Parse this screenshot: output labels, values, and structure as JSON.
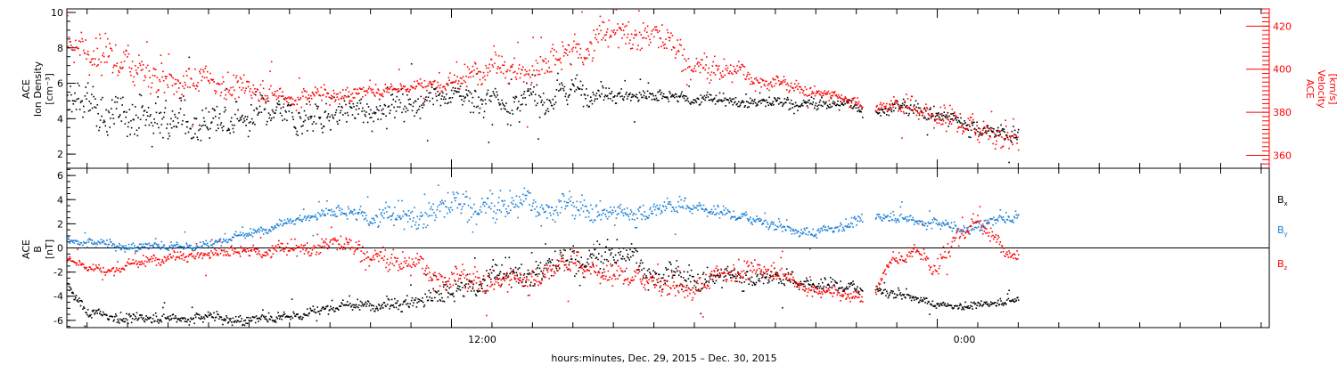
{
  "chart_data": {
    "xlabel": "hours:minutes, Dec. 29, 2015 – Dec. 30, 2015",
    "x_ticks": [
      {
        "label": "12:00",
        "hour": 12
      },
      {
        "label": "0:00",
        "hour": 24
      }
    ],
    "x_range_hours": [
      2.5,
      32.2
    ],
    "data_end_hour": 26.0,
    "panels": [
      {
        "type": "scatter",
        "left_axis": {
          "label_lines": [
            "ACE",
            "Ion Density",
            "[cm⁻³]"
          ],
          "ylim": [
            1.2,
            10.2
          ],
          "ticks": [
            2,
            4,
            6,
            8,
            10
          ]
        },
        "right_axis": {
          "label_lines": [
            "ACE",
            "Velocity",
            "[km/s]"
          ],
          "ylim": [
            354,
            428
          ],
          "ticks": [
            360,
            380,
            400,
            420
          ],
          "color": "#ff0000"
        },
        "series": [
          {
            "color": "#000000",
            "knots": [
              [
                2.5,
                4.8
              ],
              [
                3.5,
                4.3
              ],
              [
                5,
                4.1
              ],
              [
                7,
                4.0
              ],
              [
                9,
                4.2
              ],
              [
                10,
                4.6
              ],
              [
                11,
                5.0
              ],
              [
                12,
                5.3
              ],
              [
                13.5,
                5.0
              ],
              [
                14.5,
                5.5
              ],
              [
                15,
                5.8
              ],
              [
                16,
                5.5
              ],
              [
                17,
                5.2
              ],
              [
                18,
                5.1
              ],
              [
                19,
                5.0
              ],
              [
                20,
                4.9
              ],
              [
                21,
                4.9
              ],
              [
                22,
                4.7
              ],
              [
                22.4,
                4.4
              ],
              [
                22.8,
                4.7
              ],
              [
                23.5,
                4.6
              ],
              [
                24,
                4.3
              ],
              [
                24.5,
                4.0
              ],
              [
                25,
                3.6
              ],
              [
                25.5,
                3.2
              ],
              [
                26,
                2.9
              ]
            ],
            "spread": [
              [
                2.5,
                1.6
              ],
              [
                10,
                1.2
              ],
              [
                12,
                0.8
              ],
              [
                14,
                1.2
              ],
              [
                16,
                0.6
              ],
              [
                19,
                0.4
              ],
              [
                22,
                0.4
              ],
              [
                24,
                0.6
              ],
              [
                26,
                0.6
              ]
            ]
          },
          {
            "color": "#ff0000",
            "axis": "right",
            "knots": [
              [
                2.5,
                418
              ],
              [
                3,
                408
              ],
              [
                4,
                400
              ],
              [
                6,
                394
              ],
              [
                8,
                388
              ],
              [
                10,
                390
              ],
              [
                11,
                393
              ],
              [
                12,
                392
              ],
              [
                13,
                405
              ],
              [
                14,
                398
              ],
              [
                15,
                406
              ],
              [
                16,
                417
              ],
              [
                17,
                416
              ],
              [
                18,
                402
              ],
              [
                19,
                398
              ],
              [
                20,
                394
              ],
              [
                21,
                390
              ],
              [
                22,
                386
              ],
              [
                22.4,
                383
              ],
              [
                22.8,
                383
              ],
              [
                23.5,
                382
              ],
              [
                24,
                378
              ],
              [
                24.5,
                374
              ],
              [
                25,
                371
              ],
              [
                25.5,
                370
              ],
              [
                26,
                369
              ]
            ],
            "spread": [
              [
                2.5,
                14
              ],
              [
                8,
                6
              ],
              [
                11,
                3
              ],
              [
                13,
                8
              ],
              [
                15,
                12
              ],
              [
                18,
                8
              ],
              [
                20,
                4
              ],
              [
                22,
                3
              ],
              [
                24,
                8
              ],
              [
                26,
                8
              ]
            ]
          }
        ]
      },
      {
        "type": "scatter",
        "left_axis": {
          "label_lines": [
            "ACE",
            "B",
            "[nT]"
          ],
          "ylim": [
            -6.6,
            6.6
          ],
          "ticks": [
            -6,
            -4,
            -2,
            0,
            2,
            4,
            6
          ]
        },
        "zero_line": true,
        "legend": [
          {
            "label": "B",
            "sub": "x",
            "color": "#000000"
          },
          {
            "label": "B",
            "sub": "y",
            "color": "#1b7fd6"
          },
          {
            "label": "B",
            "sub": "z",
            "color": "#ff0000"
          }
        ],
        "series": [
          {
            "color": "#000000",
            "knots": [
              [
                2.5,
                -3.0
              ],
              [
                3,
                -5.4
              ],
              [
                4,
                -5.8
              ],
              [
                6,
                -5.6
              ],
              [
                7,
                -5.9
              ],
              [
                8,
                -5.5
              ],
              [
                9,
                -5.0
              ],
              [
                10,
                -4.6
              ],
              [
                11,
                -4.3
              ],
              [
                12,
                -4.0
              ],
              [
                13,
                -2.5
              ],
              [
                14,
                -2.0
              ],
              [
                15,
                -1.0
              ],
              [
                16,
                -0.5
              ],
              [
                17,
                -2.0
              ],
              [
                18,
                -2.5
              ],
              [
                19,
                -2.0
              ],
              [
                20,
                -2.5
              ],
              [
                21,
                -3.0
              ],
              [
                22,
                -3.4
              ],
              [
                22.4,
                -3.5
              ],
              [
                22.8,
                -3.6
              ],
              [
                23.5,
                -4.0
              ],
              [
                24,
                -4.8
              ],
              [
                25,
                -4.7
              ],
              [
                26,
                -4.2
              ]
            ],
            "spread": [
              [
                2.5,
                0.6
              ],
              [
                10,
                0.5
              ],
              [
                12,
                1.5
              ],
              [
                16,
                1.5
              ],
              [
                18,
                1.3
              ],
              [
                21,
                0.8
              ],
              [
                24,
                0.4
              ],
              [
                26,
                0.4
              ]
            ]
          },
          {
            "color": "#1b7fd6",
            "knots": [
              [
                2.5,
                0.8
              ],
              [
                4,
                0.2
              ],
              [
                6,
                0.3
              ],
              [
                7,
                1.2
              ],
              [
                8,
                2.4
              ],
              [
                9,
                2.9
              ],
              [
                10,
                2.5
              ],
              [
                11,
                2.5
              ],
              [
                12,
                3.5
              ],
              [
                13,
                3.5
              ],
              [
                14,
                3.5
              ],
              [
                15,
                3.5
              ],
              [
                16,
                3.0
              ],
              [
                17,
                3.3
              ],
              [
                18,
                3.5
              ],
              [
                19,
                2.6
              ],
              [
                20,
                2.0
              ],
              [
                21,
                1.2
              ],
              [
                22,
                2.3
              ],
              [
                22.4,
                2.5
              ],
              [
                22.8,
                2.7
              ],
              [
                23.5,
                2.4
              ],
              [
                24,
                2.2
              ],
              [
                24.5,
                1.6
              ],
              [
                25,
                2.0
              ],
              [
                26,
                2.8
              ]
            ],
            "spread": [
              [
                2.5,
                0.5
              ],
              [
                8,
                0.4
              ],
              [
                11,
                1.5
              ],
              [
                13,
                1.5
              ],
              [
                16,
                1.2
              ],
              [
                19,
                0.6
              ],
              [
                21,
                0.6
              ],
              [
                24,
                0.6
              ],
              [
                26,
                0.6
              ]
            ]
          },
          {
            "color": "#ff0000",
            "knots": [
              [
                2.5,
                -0.8
              ],
              [
                3.5,
                -2.0
              ],
              [
                5,
                -0.5
              ],
              [
                7,
                -0.4
              ],
              [
                8.5,
                0.0
              ],
              [
                9,
                0.5
              ],
              [
                10,
                -0.5
              ],
              [
                11,
                -1.5
              ],
              [
                12,
                -2.5
              ],
              [
                13,
                -2.6
              ],
              [
                14,
                -2.2
              ],
              [
                15,
                -1.2
              ],
              [
                16,
                -2.4
              ],
              [
                17,
                -2.8
              ],
              [
                18,
                -3.2
              ],
              [
                19,
                -1.8
              ],
              [
                20,
                -1.8
              ],
              [
                21,
                -3.5
              ],
              [
                22,
                -3.8
              ],
              [
                22.4,
                -4.0
              ],
              [
                22.8,
                -1.2
              ],
              [
                23.5,
                0.0
              ],
              [
                24,
                -1.5
              ],
              [
                24.5,
                1.0
              ],
              [
                25,
                2.0
              ],
              [
                26,
                -0.8
              ]
            ],
            "spread": [
              [
                2.5,
                0.4
              ],
              [
                10,
                1.0
              ],
              [
                12,
                1.3
              ],
              [
                16,
                1.2
              ],
              [
                19,
                1.2
              ],
              [
                21,
                0.6
              ],
              [
                23,
                0.6
              ],
              [
                24,
                1.2
              ],
              [
                26,
                0.6
              ]
            ]
          }
        ]
      }
    ]
  }
}
